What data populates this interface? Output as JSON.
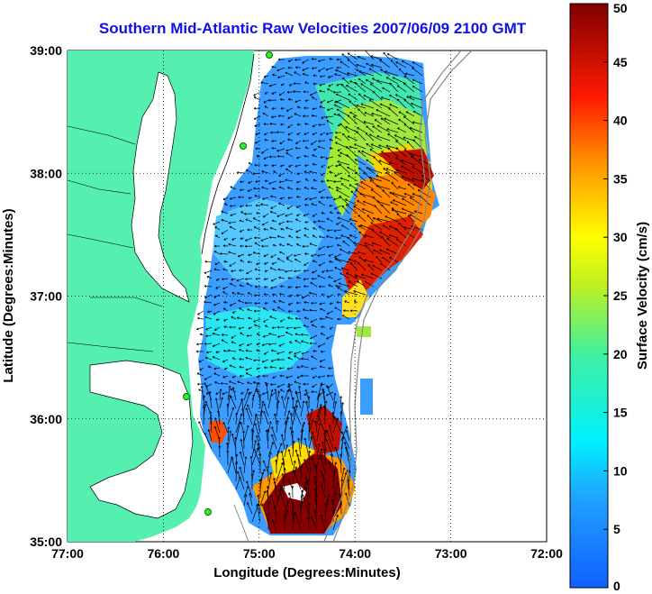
{
  "title": "Southern Mid-Atlantic Raw Velocities 2007/06/09 2100 GMT",
  "map": {
    "xlabel": "Longitude (Degrees:Minutes)",
    "ylabel": "Latitude (Degrees:Minutes)",
    "lon_ticks": [
      "77:00",
      "76:00",
      "75:00",
      "74:00",
      "73:00",
      "72:00"
    ],
    "lat_ticks": [
      "39:00",
      "38:00",
      "37:00",
      "36:00",
      "35:00"
    ],
    "lon_range": [
      -77,
      -72
    ],
    "lat_range": [
      35,
      39
    ],
    "land_color": "#55f0b0"
  },
  "colorbar": {
    "label": "Surface Velocity (cm/s)",
    "ticks": [
      "50",
      "45",
      "40",
      "35",
      "30",
      "25",
      "20",
      "15",
      "10",
      "5",
      "0"
    ],
    "range": [
      0,
      50
    ]
  }
}
